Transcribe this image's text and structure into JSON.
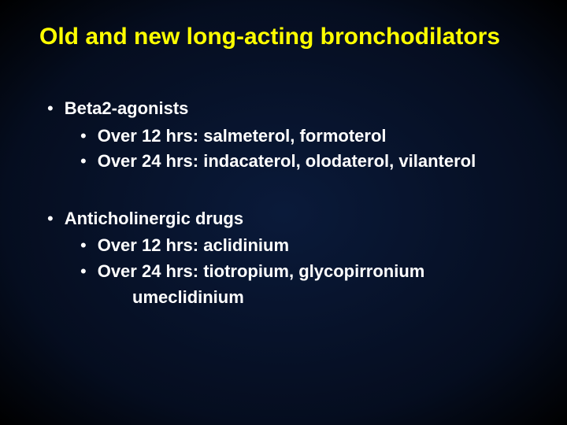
{
  "slide": {
    "title": "Old and new long-acting bronchodilators",
    "title_color": "#ffff00",
    "text_color": "#ffffff",
    "background": {
      "center": "#0a1a3a",
      "mid": "#050d1f",
      "edge": "#000000"
    },
    "font_family": "Arial",
    "title_fontsize": 30,
    "body_fontsize": 22,
    "body_fontweight": "bold",
    "bullet_char": "•",
    "groups": [
      {
        "heading": "Beta2-agonists",
        "items": [
          {
            "text": "Over 12 hrs:  salmeterol, formoterol"
          },
          {
            "text": "Over 24 hrs:  indacaterol, olodaterol, vilanterol"
          }
        ]
      },
      {
        "heading": "Anticholinergic drugs",
        "items": [
          {
            "text": "Over 12 hrs: aclidinium"
          },
          {
            "text": "Over 24 hrs: tiotropium, glycopirronium",
            "cont": "umeclidinium"
          }
        ]
      }
    ]
  }
}
